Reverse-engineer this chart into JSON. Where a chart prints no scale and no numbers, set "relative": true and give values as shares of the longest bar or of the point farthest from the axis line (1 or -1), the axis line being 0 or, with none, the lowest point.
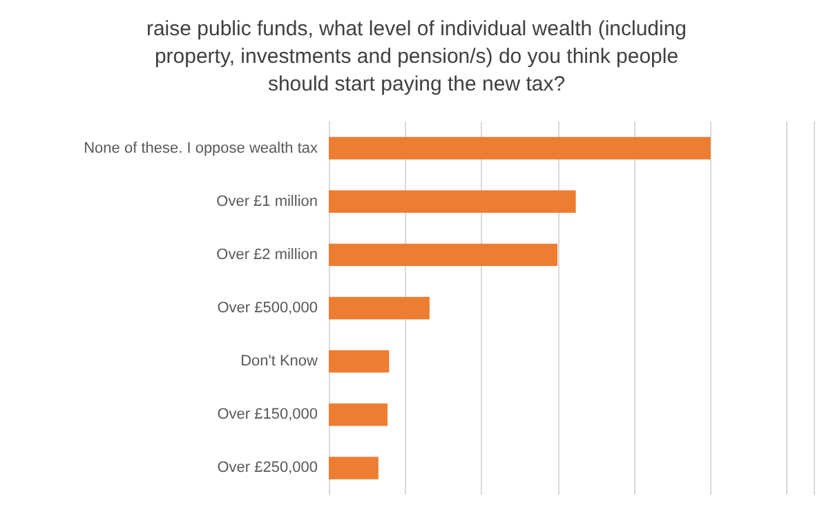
{
  "chart_data": {
    "type": "bar",
    "orientation": "horizontal",
    "relative": true,
    "title": "raise public funds, what level of individual wealth (including\nproperty, investments and pension/s) do you think people\nshould start paying the new tax?",
    "categories": [
      "None of these. I oppose wealth tax",
      "Over £1 million",
      "Over £2 million",
      "Over £500,000",
      "Don't Know",
      "Over £150,000",
      "Over £250,000"
    ],
    "values": [
      1,
      0.647,
      0.599,
      0.264,
      0.158,
      0.154,
      0.13
    ],
    "color": "#ed7d31",
    "grid": "x"
  }
}
